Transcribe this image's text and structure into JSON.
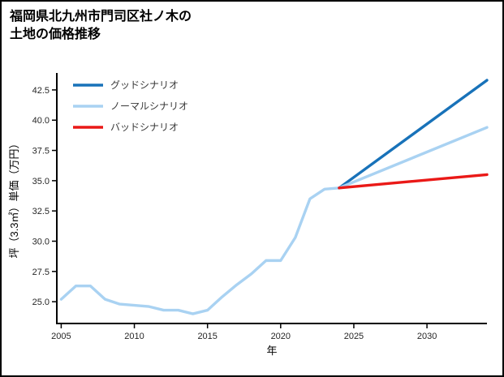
{
  "header": {
    "line1": "福岡県北九州市門司区社ノ木の",
    "line2": "土地の価格推移"
  },
  "chart_data": {
    "type": "line",
    "title": "福岡県北九州市門司区社ノ木の土地の価格推移",
    "xlabel": "年",
    "ylabel": "坪（3.3㎡）単価（万円）",
    "xlim": [
      2004.7,
      2034.1
    ],
    "ylim": [
      23.2,
      43.9
    ],
    "xticks": [
      2005,
      2010,
      2015,
      2020,
      2025,
      2030
    ],
    "yticks": [
      25.0,
      27.5,
      30.0,
      32.5,
      35.0,
      37.5,
      40.0,
      42.5
    ],
    "grid": false,
    "legend_position": "upper-left",
    "legend": [
      {
        "id": "good",
        "label": "グッドシナリオ",
        "color": "#1872b9"
      },
      {
        "id": "normal",
        "label": "ノーマルシナリオ",
        "color": "#a9d2f2"
      },
      {
        "id": "bad",
        "label": "バッドシナリオ",
        "color": "#ea1917"
      }
    ],
    "series": [
      {
        "id": "history",
        "color": "#a9d2f2",
        "x": [
          2005,
          2006,
          2007,
          2008,
          2009,
          2010,
          2011,
          2012,
          2013,
          2014,
          2015,
          2016,
          2017,
          2018,
          2019,
          2020,
          2021,
          2022,
          2023,
          2024
        ],
        "values": [
          25.2,
          26.3,
          26.3,
          25.2,
          24.8,
          24.7,
          24.6,
          24.3,
          24.3,
          24.0,
          24.3,
          25.4,
          26.4,
          27.3,
          28.4,
          28.4,
          30.3,
          33.5,
          34.3,
          34.4
        ]
      },
      {
        "id": "good-scenario",
        "color": "#1872b9",
        "x": [
          2024,
          2034.1
        ],
        "values": [
          34.4,
          43.3
        ]
      },
      {
        "id": "normal-scenario",
        "color": "#a9d2f2",
        "x": [
          2024,
          2034.1
        ],
        "values": [
          34.4,
          39.4
        ]
      },
      {
        "id": "bad-scenario",
        "color": "#ea1917",
        "x": [
          2024,
          2034.1
        ],
        "values": [
          34.4,
          35.5
        ]
      }
    ]
  }
}
